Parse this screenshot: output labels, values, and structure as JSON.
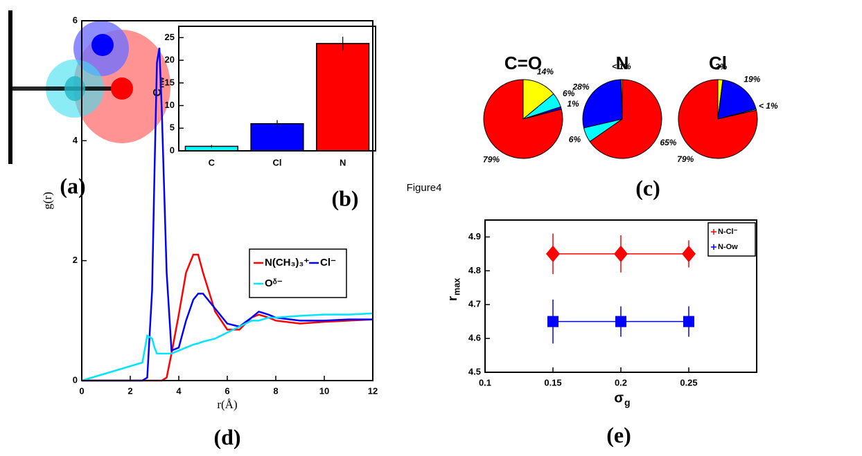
{
  "figure_title": "Figure4",
  "diagram": {
    "panel": "(a)"
  },
  "chart_data": [
    {
      "type": "bar",
      "panel": "(b)",
      "y_label": "C",
      "y_label_sub": "nw",
      "categories": [
        "C",
        "Cl",
        "N"
      ],
      "values": [
        1,
        6,
        23.7
      ],
      "errors": [
        0.3,
        0.8,
        1.5
      ],
      "colors": [
        "#00ffff",
        "#0000ff",
        "#ff0000"
      ],
      "ylim": [
        0,
        27.5
      ],
      "yticks": [
        0,
        5,
        10,
        15,
        20,
        25
      ]
    },
    {
      "type": "pie",
      "panel": "(c)",
      "pies": [
        {
          "title": "C=O",
          "values": [
            14,
            6,
            1,
            79
          ],
          "value_labels": [
            "14%",
            "6%",
            "1%",
            "79%"
          ],
          "colors": [
            "#ffff00",
            "#00ffff",
            "#0000ff",
            "#ff0000"
          ]
        },
        {
          "title": "N",
          "values": [
            65,
            6,
            28,
            0.5
          ],
          "value_labels": [
            "65%",
            "6%",
            "28%",
            "< 1%"
          ],
          "colors": [
            "#ff0000",
            "#00ffff",
            "#0000ff",
            "#ffff00"
          ]
        },
        {
          "title": "Cl",
          "values": [
            2,
            19,
            0.5,
            79
          ],
          "value_labels": [
            "2%",
            "19%",
            "< 1%",
            "79%"
          ],
          "colors": [
            "#ffff00",
            "#0000ff",
            "#00ffff",
            "#ff0000"
          ]
        }
      ]
    },
    {
      "type": "line",
      "panel": "(d)",
      "x_label": "r(Å)",
      "y_label": "g(r)",
      "x": [
        0,
        2.5,
        2.7,
        2.9,
        3.0,
        3.1,
        3.2,
        3.3,
        3.5,
        3.7,
        4.0,
        4.3,
        4.6,
        4.8,
        5.0,
        5.5,
        6.0,
        6.5,
        7.0,
        7.3,
        7.7,
        8.0,
        9,
        10,
        11,
        12
      ],
      "series": [
        {
          "name": "N(CH₃)₃⁺",
          "color": "#ff0000",
          "values": [
            0,
            0,
            0,
            0,
            0,
            0,
            0,
            0,
            0.05,
            0.45,
            1.1,
            1.8,
            2.1,
            2.1,
            1.8,
            1.15,
            0.85,
            0.85,
            1.05,
            1.1,
            1.05,
            1.0,
            0.95,
            0.98,
            1.0,
            1.02
          ]
        },
        {
          "name": "Cl⁻",
          "color": "#0000ff",
          "values": [
            0,
            0,
            0.05,
            1.5,
            3.5,
            5.3,
            5.55,
            4.5,
            1.8,
            0.5,
            0.55,
            1.0,
            1.35,
            1.45,
            1.45,
            1.2,
            0.95,
            0.9,
            1.05,
            1.15,
            1.1,
            1.05,
            1.0,
            1.0,
            1.02,
            1.02
          ]
        },
        {
          "name": "Oᵟ⁻",
          "color": "#00e5ff",
          "values": [
            0,
            0.3,
            0.75,
            0.7,
            0.55,
            0.45,
            0.45,
            0.45,
            0.45,
            0.45,
            0.5,
            0.55,
            0.6,
            0.62,
            0.65,
            0.7,
            0.8,
            0.9,
            1.0,
            1.0,
            1.05,
            1.05,
            1.08,
            1.1,
            1.1,
            1.12
          ]
        }
      ],
      "xlim": [
        0,
        12
      ],
      "xticks": [
        0,
        2,
        4,
        6,
        8,
        10,
        12
      ],
      "ylim": [
        0,
        6
      ],
      "yticks": [
        0,
        2,
        4,
        6
      ]
    },
    {
      "type": "scatter",
      "panel": "(e)",
      "x_label": "σ",
      "x_label_sub": "g",
      "y_label": "r",
      "y_label_sub": "max",
      "x": [
        0.15,
        0.2,
        0.25
      ],
      "series": [
        {
          "name": "N-Cl⁻",
          "color": "#ff0000",
          "marker": "diamond",
          "values": [
            4.85,
            4.85,
            4.85
          ],
          "errors": [
            0.06,
            0.055,
            0.04
          ]
        },
        {
          "name": "N-Ow",
          "color": "#0000ff",
          "marker": "square",
          "values": [
            4.65,
            4.65,
            4.65
          ],
          "errors": [
            0.065,
            0.045,
            0.045
          ]
        }
      ],
      "xlim": [
        0.1,
        0.3
      ],
      "xticks": [
        0.1,
        0.15,
        0.2,
        0.25
      ],
      "ylim": [
        4.5,
        4.95
      ],
      "yticks": [
        4.5,
        4.6,
        4.7,
        4.8,
        4.9
      ]
    }
  ]
}
